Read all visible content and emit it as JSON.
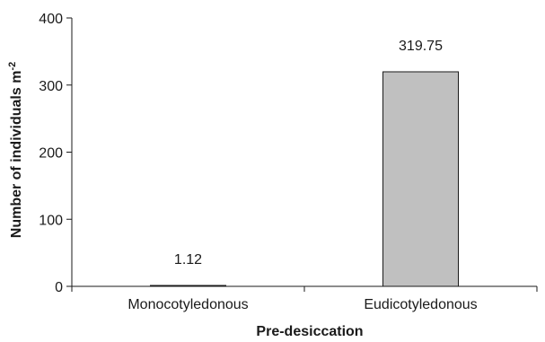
{
  "chart_data": {
    "type": "bar",
    "categories": [
      "Monocotyledonous",
      "Eudicotyledonous"
    ],
    "values": [
      1.12,
      319.75
    ],
    "data_labels": [
      "1.12",
      "319.75"
    ],
    "title": "",
    "xlabel": "Pre-desiccation",
    "ylabel": "Number of individuals m",
    "ylabel_superscript": "-2",
    "ylim": [
      0,
      400
    ],
    "yticks": [
      0,
      100,
      200,
      300,
      400
    ],
    "grid": false,
    "legend": "none",
    "bar_color": "#c0c0c0",
    "bar_edge_color": "#1a1a1a"
  }
}
